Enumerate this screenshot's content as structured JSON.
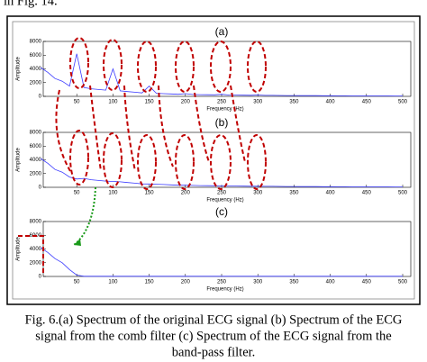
{
  "header_text": "in Fig. 14.",
  "caption": [
    "Fig. 6.(a) Spectrum of  the original ECG signal  (b) Spectrum of the ECG",
    "signal from the comb filter (c) Spectrum of the ECG signal from the",
    "band-pass filter."
  ],
  "chart_data": [
    {
      "type": "line",
      "title": "(a)",
      "x_label": "Frequency (Hz)",
      "y_label": "Amplitude",
      "color": "#3a3aff",
      "x": [
        0,
        10,
        20,
        30,
        40,
        50,
        60,
        70,
        80,
        90,
        100,
        110,
        120,
        130,
        140,
        150,
        160,
        170,
        180,
        190,
        200,
        210,
        220,
        230,
        240,
        250,
        260,
        270,
        280,
        290,
        300,
        310,
        320,
        330,
        340,
        350,
        360,
        370,
        380,
        390,
        400,
        410,
        420,
        430,
        440,
        450,
        460,
        470,
        480,
        490,
        500
      ],
      "values": [
        4200,
        3500,
        2600,
        2200,
        1500,
        6200,
        1300,
        1100,
        1000,
        900,
        4000,
        800,
        700,
        600,
        500,
        1500,
        450,
        400,
        350,
        300,
        400,
        280,
        250,
        230,
        220,
        300,
        200,
        180,
        170,
        160,
        200,
        150,
        140,
        130,
        120,
        120,
        110,
        100,
        100,
        90,
        90,
        80,
        80,
        70,
        70,
        70,
        60,
        60,
        60,
        50,
        50
      ],
      "xlim": [
        0,
        500
      ],
      "ylim": [
        0,
        8000
      ],
      "xticks": [
        50,
        100,
        150,
        200,
        250,
        300,
        350,
        400,
        450,
        500
      ],
      "yticks": [
        0,
        2000,
        4000,
        6000,
        8000
      ]
    },
    {
      "type": "line",
      "title": "(b)",
      "x_label": "Frequency (Hz)",
      "y_label": "Amplitude",
      "color": "#3a3aff",
      "x": [
        0,
        10,
        20,
        30,
        40,
        50,
        60,
        70,
        80,
        90,
        100,
        110,
        120,
        130,
        140,
        150,
        160,
        170,
        180,
        190,
        200,
        210,
        220,
        230,
        240,
        250,
        260,
        270,
        280,
        290,
        300,
        310,
        320,
        330,
        340,
        350,
        360,
        370,
        380,
        390,
        400,
        410,
        420,
        430,
        440,
        450,
        460,
        470,
        480,
        490,
        500
      ],
      "values": [
        4200,
        3500,
        2600,
        2200,
        1500,
        1200,
        1300,
        1100,
        1000,
        900,
        850,
        800,
        700,
        600,
        500,
        480,
        450,
        400,
        350,
        300,
        320,
        280,
        250,
        230,
        220,
        210,
        200,
        180,
        170,
        160,
        160,
        150,
        140,
        130,
        120,
        120,
        110,
        100,
        100,
        90,
        90,
        80,
        80,
        70,
        70,
        70,
        60,
        60,
        60,
        50,
        50
      ],
      "xlim": [
        0,
        500
      ],
      "ylim": [
        0,
        8000
      ],
      "xticks": [
        50,
        100,
        150,
        200,
        250,
        300,
        350,
        400,
        450,
        500
      ],
      "yticks": [
        0,
        2000,
        4000,
        6000,
        8000
      ]
    },
    {
      "type": "line",
      "title": "(c)",
      "x_label": "Frequency (Hz)",
      "y_label": "Amplitude",
      "color": "#3a3aff",
      "x": [
        0,
        10,
        20,
        30,
        40,
        50,
        60,
        70,
        80,
        90,
        100,
        110,
        120,
        130,
        140,
        150,
        160,
        170,
        180,
        190,
        200,
        210,
        220,
        230,
        240,
        250,
        260,
        270,
        280,
        290,
        300,
        310,
        320,
        330,
        340,
        350,
        360,
        370,
        380,
        390,
        400,
        410,
        420,
        430,
        440,
        450,
        460,
        470,
        480,
        490,
        500
      ],
      "values": [
        4200,
        3500,
        2600,
        2000,
        1000,
        200,
        20,
        20,
        20,
        20,
        20,
        20,
        20,
        20,
        20,
        20,
        20,
        20,
        20,
        20,
        20,
        20,
        20,
        20,
        20,
        20,
        20,
        20,
        20,
        20,
        20,
        20,
        20,
        20,
        20,
        20,
        20,
        20,
        20,
        20,
        20,
        20,
        20,
        20,
        20,
        20,
        20,
        20,
        20,
        20,
        20
      ],
      "xlim": [
        0,
        500
      ],
      "ylim": [
        0,
        8000
      ],
      "xticks": [
        50,
        100,
        150,
        200,
        250,
        300,
        350,
        400,
        450,
        500
      ],
      "yticks": [
        0,
        2000,
        4000,
        6000,
        8000
      ]
    }
  ]
}
